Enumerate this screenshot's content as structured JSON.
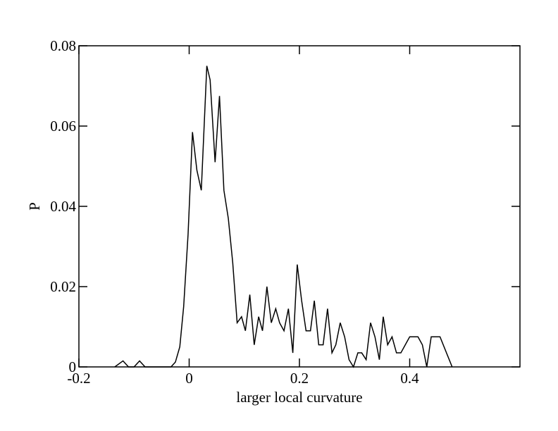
{
  "chart_data": {
    "type": "line",
    "x_label": "larger local curvature",
    "y_label": "P",
    "x": [
      -0.135,
      -0.12,
      -0.11,
      -0.1,
      -0.09,
      -0.08,
      -0.07,
      -0.05,
      -0.033,
      -0.025,
      -0.017,
      -0.01,
      -0.002,
      0.006,
      0.014,
      0.022,
      0.032,
      0.038,
      0.047,
      0.055,
      0.063,
      0.071,
      0.079,
      0.087,
      0.095,
      0.102,
      0.11,
      0.118,
      0.126,
      0.133,
      0.141,
      0.149,
      0.157,
      0.164,
      0.172,
      0.18,
      0.188,
      0.196,
      0.204,
      0.212,
      0.22,
      0.227,
      0.235,
      0.243,
      0.251,
      0.259,
      0.266,
      0.274,
      0.282,
      0.29,
      0.298,
      0.306,
      0.313,
      0.321,
      0.329,
      0.337,
      0.345,
      0.352,
      0.36,
      0.368,
      0.376,
      0.384,
      0.392,
      0.4,
      0.408,
      0.415,
      0.423,
      0.431,
      0.439,
      0.447,
      0.455,
      0.477
    ],
    "values": [
      0,
      0.0015,
      0,
      0,
      0.0015,
      0,
      0,
      0,
      0,
      0.0012,
      0.005,
      0.015,
      0.033,
      0.0585,
      0.049,
      0.044,
      0.075,
      0.0715,
      0.051,
      0.0675,
      0.044,
      0.037,
      0.026,
      0.011,
      0.0125,
      0.009,
      0.018,
      0.0055,
      0.0125,
      0.009,
      0.02,
      0.011,
      0.0145,
      0.011,
      0.009,
      0.0145,
      0.0035,
      0.0255,
      0.0165,
      0.009,
      0.009,
      0.0165,
      0.0055,
      0.0055,
      0.0145,
      0.0035,
      0.0055,
      0.011,
      0.0075,
      0.0018,
      0,
      0.0035,
      0.0035,
      0.0018,
      0.011,
      0.0075,
      0.0018,
      0.0125,
      0.0055,
      0.0075,
      0.0035,
      0.0035,
      0.0055,
      0.0075,
      0.0075,
      0.0075,
      0.0055,
      0,
      0.0075,
      0.0075,
      0.0075,
      0
    ],
    "color": "#000000",
    "xlim": [
      -0.2,
      0.6
    ],
    "ylim": [
      0,
      0.08
    ],
    "xticks": [
      -0.2,
      0,
      0.2,
      0.4
    ],
    "yticks": [
      0,
      0.02,
      0.04,
      0.06,
      0.08
    ]
  }
}
